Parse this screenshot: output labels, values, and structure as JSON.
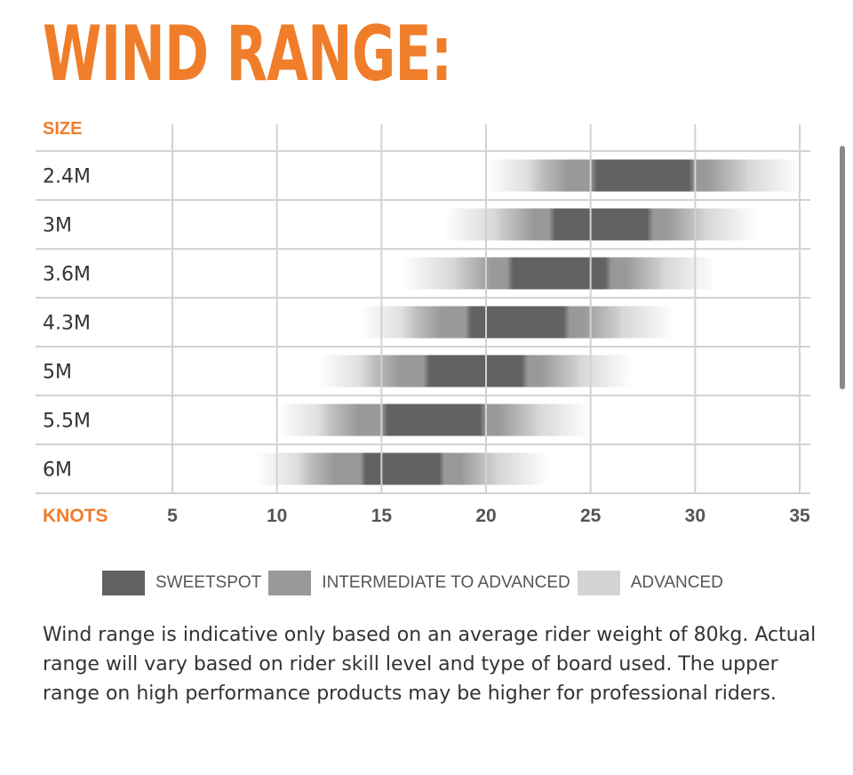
{
  "title": "WIND RANGE:",
  "chart_data": {
    "type": "bar",
    "orientation": "horizontal-range",
    "row_header": "SIZE",
    "x_header": "KNOTS",
    "xlim": [
      5,
      35
    ],
    "x_ticks": [
      "5",
      "10",
      "15",
      "20",
      "25",
      "30",
      "35"
    ],
    "grid": true,
    "categories": [
      "2.4M",
      "3M",
      "3.6M",
      "4.3M",
      "5M",
      "5.5M",
      "6M"
    ],
    "series": [
      {
        "name": "ADVANCED",
        "color": "#d3d3d3",
        "ranges": [
          [
            20,
            35
          ],
          [
            18,
            33
          ],
          [
            16,
            31
          ],
          [
            14,
            29
          ],
          [
            12,
            27
          ],
          [
            10,
            25
          ],
          [
            9,
            23
          ]
        ]
      },
      {
        "name": "INTERMEDIATE TO ADVANCED",
        "color": "#999999",
        "ranges": [
          [
            22,
            32.5
          ],
          [
            20.5,
            30.5
          ],
          [
            18.5,
            28.5
          ],
          [
            16,
            26.5
          ],
          [
            14,
            24.5
          ],
          [
            12,
            22.5
          ],
          [
            11,
            20.5
          ]
        ]
      },
      {
        "name": "SWEETSPOT",
        "color": "#626262",
        "ranges": [
          [
            25,
            30
          ],
          [
            23,
            28
          ],
          [
            21,
            26
          ],
          [
            19,
            24
          ],
          [
            17,
            22
          ],
          [
            15,
            20
          ],
          [
            14,
            18
          ]
        ]
      }
    ]
  },
  "legend": [
    {
      "label": "SWEETSPOT",
      "color": "#626262"
    },
    {
      "label": "INTERMEDIATE TO ADVANCED",
      "color": "#999999"
    },
    {
      "label": "ADVANCED",
      "color": "#d3d3d3"
    }
  ],
  "note": "Wind range is indicative only based on an average rider weight of 80kg. Actual range will vary based on rider skill level and type of board used. The upper range on high performance products may be higher for professional riders.",
  "colors": {
    "accent": "#f07d2a",
    "grid": "#d2d2d2",
    "text": "#333333"
  }
}
